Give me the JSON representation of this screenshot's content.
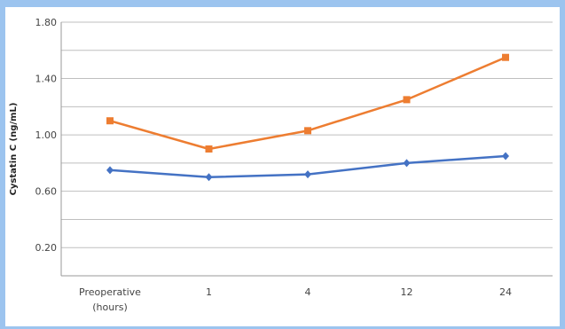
{
  "chart_data": {
    "type": "line",
    "title": "",
    "xlabel": "",
    "ylabel": "Cystatin C (ng/mL)",
    "categories": [
      "Preoperative (hours)",
      "1",
      "4",
      "12",
      "24"
    ],
    "category_lines": [
      [
        "Preoperative",
        "(hours)"
      ],
      [
        "1"
      ],
      [
        "4"
      ],
      [
        "12"
      ],
      [
        "24"
      ]
    ],
    "y_ticks": [
      "0.20",
      "0.60",
      "1.00",
      "1.40",
      "1.80"
    ],
    "ylim": [
      0,
      1.8
    ],
    "grid": true,
    "legend": "none",
    "series": [
      {
        "color": "#ed7d31",
        "marker": "square",
        "values": [
          1.1,
          0.9,
          1.03,
          1.25,
          1.55
        ]
      },
      {
        "color": "#4472c4",
        "marker": "diamond",
        "values": [
          0.75,
          0.7,
          0.72,
          0.8,
          0.85
        ]
      }
    ]
  },
  "colors": {
    "background": "#9cc4ef",
    "plot_area": "#ffffff",
    "grid": "#bfbfbf"
  }
}
